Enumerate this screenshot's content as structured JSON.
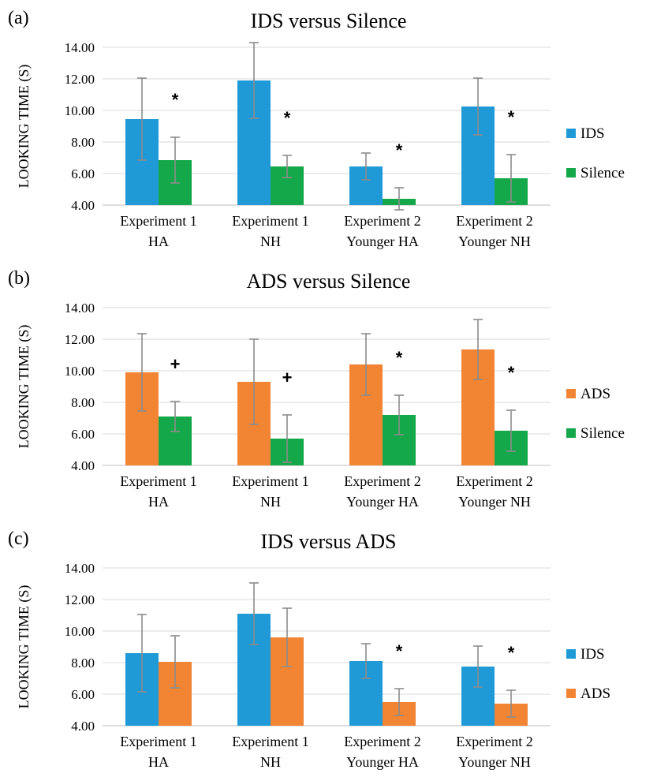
{
  "chart_data": [
    {
      "type": "bar",
      "panel": "(a)",
      "title": "IDS versus Silence",
      "ylabel": "LOOKING TIME (S)",
      "ylim": [
        4,
        14
      ],
      "yticks": [
        "4.00",
        "6.00",
        "8.00",
        "10.00",
        "12.00",
        "14.00"
      ],
      "categories": [
        [
          "Experiment 1",
          "HA"
        ],
        [
          "Experiment 1",
          "NH"
        ],
        [
          "Experiment 2",
          "Younger HA"
        ],
        [
          "Experiment 2",
          "Younger NH"
        ]
      ],
      "series": [
        {
          "name": "IDS",
          "color": "#1f9ad6",
          "values": [
            9.45,
            11.9,
            6.45,
            10.25
          ],
          "errors": [
            2.6,
            2.4,
            0.85,
            1.8
          ]
        },
        {
          "name": "Silence",
          "color": "#14a84b",
          "values": [
            6.85,
            6.45,
            4.4,
            5.7
          ],
          "errors": [
            1.45,
            0.7,
            0.7,
            1.5
          ]
        }
      ],
      "markers": [
        "*",
        "*",
        "*",
        "*"
      ],
      "legend": "right",
      "grid": true
    },
    {
      "type": "bar",
      "panel": "(b)",
      "title": "ADS versus Silence",
      "ylabel": "LOOKING TIME (S)",
      "ylim": [
        4,
        14
      ],
      "yticks": [
        "4.00",
        "6.00",
        "8.00",
        "10.00",
        "12.00",
        "14.00"
      ],
      "categories": [
        [
          "Experiment 1",
          "HA"
        ],
        [
          "Experiment 1",
          "NH"
        ],
        [
          "Experiment 2",
          "Younger HA"
        ],
        [
          "Experiment 2",
          "Younger NH"
        ]
      ],
      "series": [
        {
          "name": "ADS",
          "color": "#f28534",
          "values": [
            9.9,
            9.3,
            10.4,
            11.35
          ],
          "errors": [
            2.45,
            2.7,
            1.95,
            1.9
          ]
        },
        {
          "name": "Silence",
          "color": "#14a84b",
          "values": [
            7.1,
            5.7,
            7.2,
            6.2
          ],
          "errors": [
            0.95,
            1.5,
            1.25,
            1.3
          ]
        }
      ],
      "markers": [
        "+",
        "+",
        "*",
        "*"
      ],
      "legend": "right",
      "grid": true
    },
    {
      "type": "bar",
      "panel": "(c)",
      "title": "IDS versus ADS",
      "ylabel": "LOOKING TIME (S)",
      "ylim": [
        4,
        14
      ],
      "yticks": [
        "4.00",
        "6.00",
        "8.00",
        "10.00",
        "12.00",
        "14.00"
      ],
      "categories": [
        [
          "Experiment 1",
          "HA"
        ],
        [
          "Experiment 1",
          "NH"
        ],
        [
          "Experiment 2",
          "Younger HA"
        ],
        [
          "Experiment 2",
          "Younger NH"
        ]
      ],
      "series": [
        {
          "name": "IDS",
          "color": "#1f9ad6",
          "values": [
            8.6,
            11.1,
            8.1,
            7.75
          ],
          "errors": [
            2.45,
            1.95,
            1.1,
            1.3
          ]
        },
        {
          "name": "ADS",
          "color": "#f28534",
          "values": [
            8.05,
            9.6,
            5.5,
            5.4
          ],
          "errors": [
            1.65,
            1.85,
            0.85,
            0.85
          ]
        }
      ],
      "markers": [
        "",
        "",
        "*",
        "*"
      ],
      "legend": "right",
      "grid": true
    }
  ]
}
